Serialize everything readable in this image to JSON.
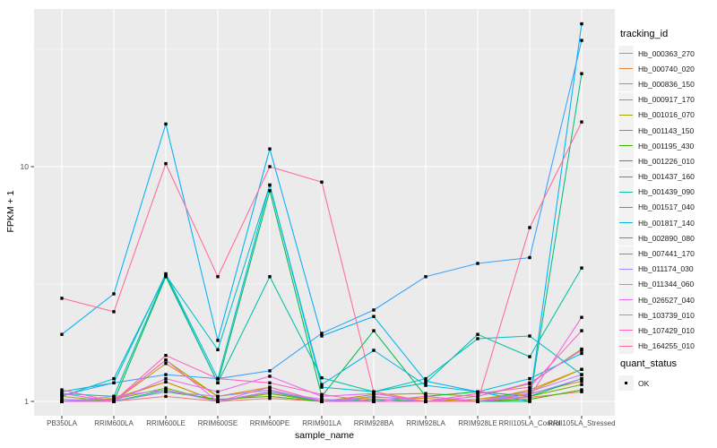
{
  "chart_data": {
    "type": "line",
    "title": "",
    "xlabel": "sample_name",
    "ylabel": "FPKM + 1",
    "y_scale": "log10",
    "ylim": [
      0.95,
      47
    ],
    "y_major_ticks": [
      1,
      10
    ],
    "y_minor_ticks": [
      3.162,
      31.62
    ],
    "grid": "on",
    "legend_position": "right",
    "legend_title": "tracking_id",
    "quant_legend": {
      "title": "quant_status",
      "items": [
        {
          "label": "OK",
          "marker": "filled-square"
        }
      ]
    },
    "categories": [
      "PB350LA",
      "RRIM600LA",
      "RRIM600LE",
      "RRIM600SE",
      "RRIM600PE",
      "RRIM901LA",
      "RRIM928BA",
      "RRIM928LA",
      "RRIM928LE",
      "RRII105LA_Control",
      "RRII105LA_Stressed"
    ],
    "series": [
      {
        "name": "Hb_000363_270",
        "color": "#F8766D",
        "values": [
          1.0,
          1.0,
          1.05,
          1.0,
          1.03,
          1.0,
          1.0,
          1.0,
          1.0,
          1.04,
          1.1
        ]
      },
      {
        "name": "Hb_000740_020",
        "color": "#EA8331",
        "values": [
          1.0,
          1.02,
          1.21,
          1.0,
          1.08,
          1.0,
          1.02,
          1.0,
          1.0,
          1.08,
          1.22
        ]
      },
      {
        "name": "Hb_000836_150",
        "color": "#D89000",
        "values": [
          1.02,
          1.0,
          1.45,
          1.05,
          1.15,
          1.0,
          1.04,
          1.03,
          1.0,
          1.12,
          1.37
        ]
      },
      {
        "name": "Hb_000917_170",
        "color": "#C09B00",
        "values": [
          1.0,
          1.03,
          1.21,
          1.0,
          1.1,
          1.02,
          1.0,
          1.0,
          1.02,
          1.1,
          1.37
        ]
      },
      {
        "name": "Hb_001016_070",
        "color": "#A3A500",
        "values": [
          1.05,
          1.0,
          1.5,
          1.05,
          1.12,
          1.0,
          1.07,
          1.08,
          1.05,
          1.19,
          1.67
        ]
      },
      {
        "name": "Hb_001143_150",
        "color": "#7CAE00",
        "values": [
          1.0,
          1.02,
          1.14,
          1.0,
          1.08,
          1.0,
          1.0,
          1.0,
          1.0,
          1.05,
          1.18
        ]
      },
      {
        "name": "Hb_001195_430",
        "color": "#39B600",
        "values": [
          1.0,
          1.0,
          1.1,
          1.02,
          1.05,
          1.0,
          1.0,
          1.0,
          1.0,
          1.02,
          1.12
        ]
      },
      {
        "name": "Hb_001226_010",
        "color": "#00BB4E",
        "values": [
          1.0,
          1.0,
          3.4,
          1.2,
          7.9,
          1.05,
          2.0,
          1.05,
          1.1,
          1.05,
          1.25
        ]
      },
      {
        "name": "Hb_001437_160",
        "color": "#00BF7D",
        "values": [
          1.0,
          1.0,
          1.12,
          1.0,
          1.1,
          1.0,
          1.02,
          1.0,
          1.0,
          1.0,
          24.9
        ]
      },
      {
        "name": "Hb_001439_090",
        "color": "#00C1A3",
        "values": [
          1.08,
          1.05,
          3.45,
          1.2,
          3.4,
          1.26,
          1.1,
          1.2,
          1.93,
          1.55,
          3.7
        ]
      },
      {
        "name": "Hb_001517_040",
        "color": "#00BFC4",
        "values": [
          1.05,
          1.25,
          3.45,
          1.66,
          8.35,
          1.15,
          1.1,
          1.25,
          1.85,
          1.9,
          1.3
        ]
      },
      {
        "name": "Hb_001817_140",
        "color": "#00BAE0",
        "values": [
          1.1,
          1.2,
          3.5,
          1.25,
          8.35,
          1.18,
          1.65,
          1.17,
          1.1,
          1.25,
          1.6
        ]
      },
      {
        "name": "Hb_002890_080",
        "color": "#00B0F6",
        "values": [
          1.93,
          2.87,
          15.2,
          1.82,
          11.9,
          1.9,
          2.3,
          1.22,
          1.1,
          1.0,
          40.6
        ]
      },
      {
        "name": "Hb_007441_170",
        "color": "#35A2FF",
        "values": [
          1.06,
          1.2,
          1.3,
          1.25,
          1.35,
          1.95,
          2.45,
          3.4,
          3.87,
          4.1,
          34.5
        ]
      },
      {
        "name": "Hb_011174_030",
        "color": "#9590FF",
        "values": [
          1.02,
          1.0,
          1.1,
          1.05,
          1.12,
          1.0,
          1.05,
          1.0,
          1.0,
          1.07,
          1.25
        ]
      },
      {
        "name": "Hb_011344_060",
        "color": "#C77CFF",
        "values": [
          1.0,
          1.05,
          1.12,
          1.0,
          1.1,
          1.02,
          1.0,
          1.05,
          1.0,
          1.1,
          1.3
        ]
      },
      {
        "name": "Hb_026527_040",
        "color": "#E76BF3",
        "values": [
          1.08,
          1.0,
          1.25,
          1.1,
          1.28,
          1.05,
          1.08,
          1.0,
          1.05,
          1.2,
          1.65
        ]
      },
      {
        "name": "Hb_103739_010",
        "color": "#FA62DB",
        "values": [
          1.0,
          1.0,
          1.5,
          1.0,
          1.15,
          1.0,
          1.0,
          1.05,
          1.0,
          1.05,
          2.28
        ]
      },
      {
        "name": "Hb_107429_010",
        "color": "#FF62BC",
        "values": [
          1.12,
          1.0,
          1.57,
          1.25,
          1.2,
          1.07,
          1.0,
          1.0,
          1.08,
          1.15,
          2.0
        ]
      },
      {
        "name": "Hb_164255_010",
        "color": "#FF6A98",
        "values": [
          2.75,
          2.41,
          10.3,
          3.4,
          10.0,
          8.6,
          1.1,
          1.0,
          1.0,
          5.5,
          15.5
        ]
      }
    ]
  },
  "style_colors": {
    "panel_bg": "#EBEBEB",
    "grid": "#FFFFFF",
    "legend_key_bg": "#F2F2F2",
    "tick_label": "#4D4D4D",
    "axis_title": "#000000",
    "marker": "#000000"
  }
}
